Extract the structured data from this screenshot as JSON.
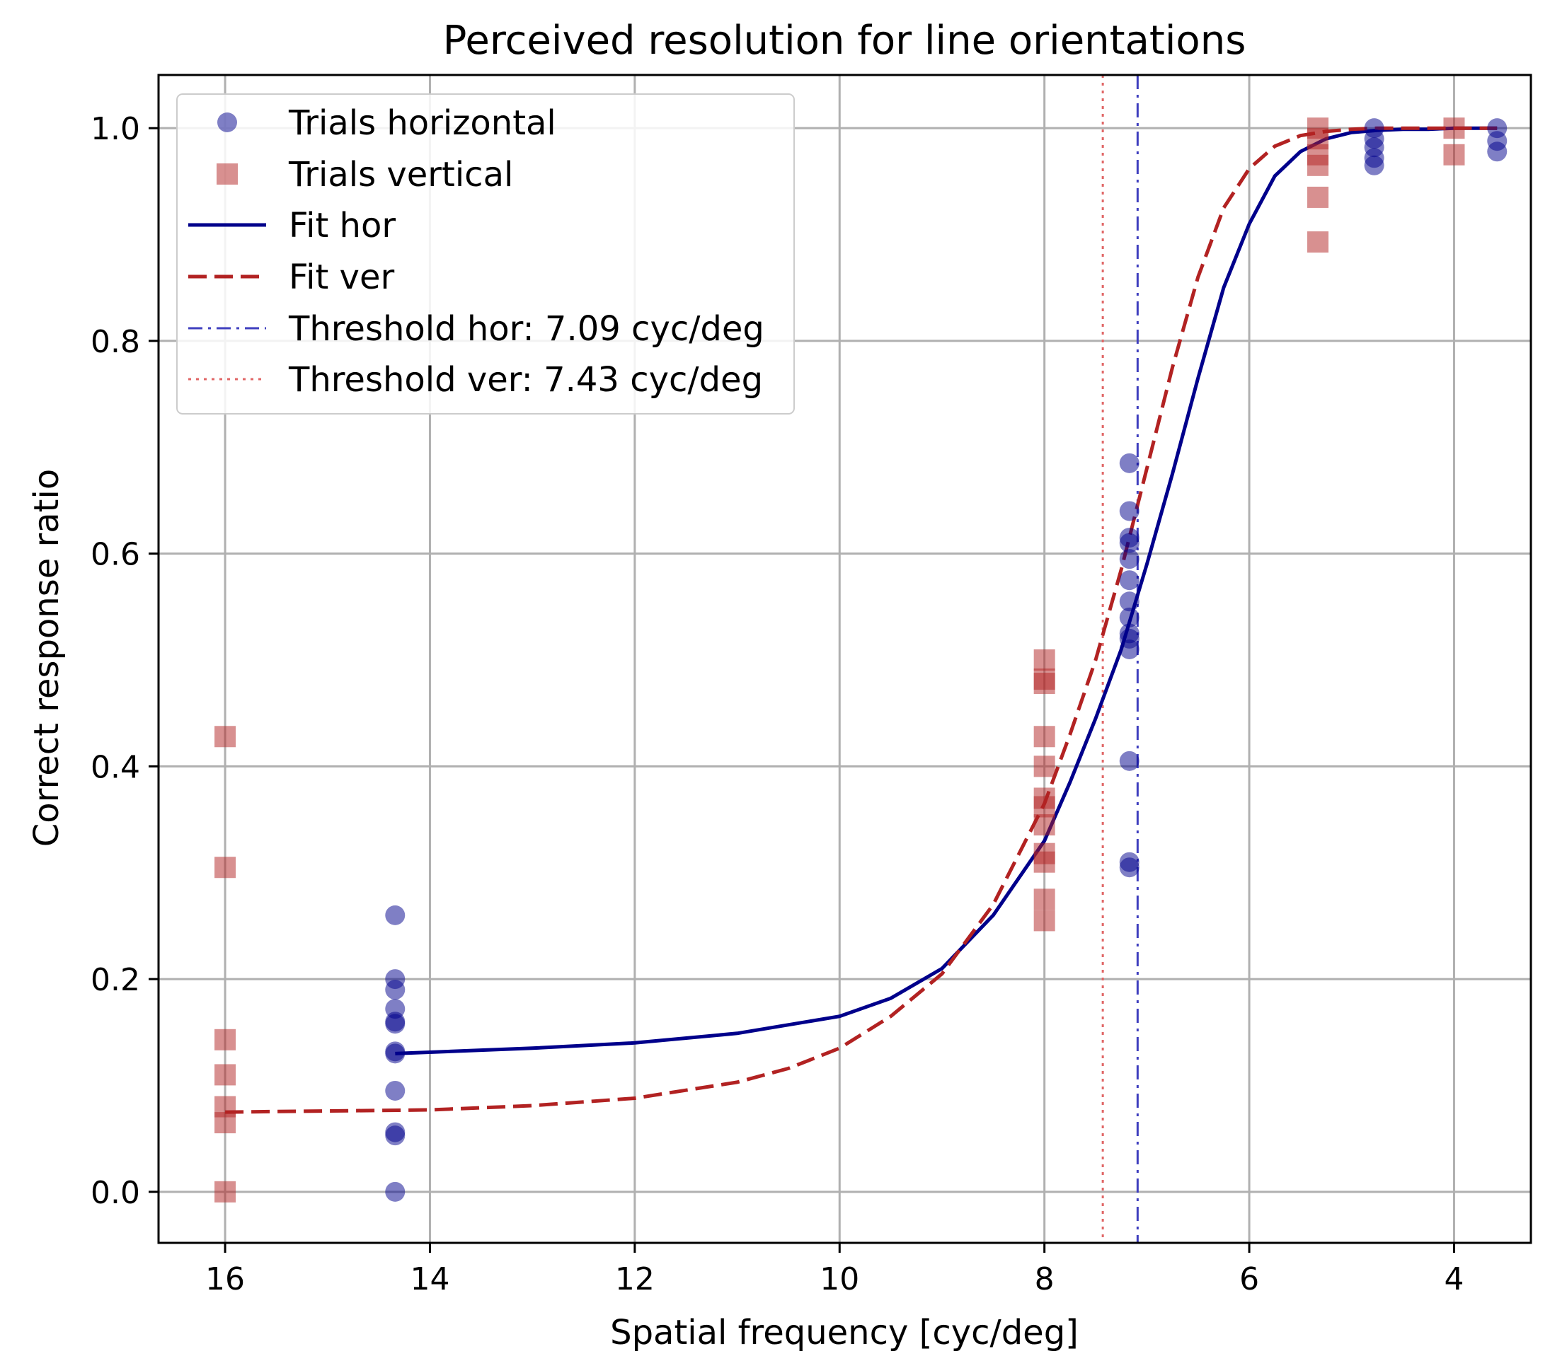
{
  "chart_data": {
    "type": "scatter",
    "title": "Perceived resolution for line orientations",
    "xlabel": "Spatial frequency [cyc/deg]",
    "ylabel": "Correct response ratio",
    "xlim": [
      16.65,
      3.25
    ],
    "ylim": [
      -0.048,
      1.05
    ],
    "x_inverted": true,
    "grid": true,
    "legend_position": "upper-left",
    "x_ticks": [
      16,
      14,
      12,
      10,
      8,
      6,
      4
    ],
    "x_tick_labels": [
      "16",
      "14",
      "12",
      "10",
      "8",
      "6",
      "4"
    ],
    "y_ticks": [
      0.0,
      0.2,
      0.4,
      0.6,
      0.8,
      1.0
    ],
    "y_tick_labels": [
      "0.0",
      "0.2",
      "0.4",
      "0.6",
      "0.8",
      "1.0"
    ],
    "colors": {
      "horizontal": "#00008b",
      "vertical": "#b22222",
      "threshold_hor": "#3f3fbf",
      "threshold_ver": "#e06666",
      "grid": "#b0b0b0"
    },
    "series": [
      {
        "name": "Trials horizontal",
        "kind": "scatter",
        "marker": "circle",
        "color": "#00008b",
        "opacity": 0.5,
        "points": [
          {
            "x": 14.34,
            "y": 0.0
          },
          {
            "x": 14.34,
            "y": 0.053
          },
          {
            "x": 14.34,
            "y": 0.056
          },
          {
            "x": 14.34,
            "y": 0.095
          },
          {
            "x": 14.34,
            "y": 0.13
          },
          {
            "x": 14.34,
            "y": 0.132
          },
          {
            "x": 14.34,
            "y": 0.158
          },
          {
            "x": 14.34,
            "y": 0.16
          },
          {
            "x": 14.34,
            "y": 0.172
          },
          {
            "x": 14.34,
            "y": 0.19
          },
          {
            "x": 14.34,
            "y": 0.2
          },
          {
            "x": 14.34,
            "y": 0.26
          },
          {
            "x": 7.17,
            "y": 0.305
          },
          {
            "x": 7.17,
            "y": 0.31
          },
          {
            "x": 7.17,
            "y": 0.405
          },
          {
            "x": 7.17,
            "y": 0.51
          },
          {
            "x": 7.17,
            "y": 0.52
          },
          {
            "x": 7.17,
            "y": 0.525
          },
          {
            "x": 7.17,
            "y": 0.54
          },
          {
            "x": 7.17,
            "y": 0.555
          },
          {
            "x": 7.17,
            "y": 0.575
          },
          {
            "x": 7.17,
            "y": 0.595
          },
          {
            "x": 7.17,
            "y": 0.61
          },
          {
            "x": 7.17,
            "y": 0.615
          },
          {
            "x": 7.17,
            "y": 0.64
          },
          {
            "x": 7.17,
            "y": 0.685
          },
          {
            "x": 4.78,
            "y": 0.965
          },
          {
            "x": 4.78,
            "y": 0.972
          },
          {
            "x": 4.78,
            "y": 0.982
          },
          {
            "x": 4.78,
            "y": 0.99
          },
          {
            "x": 4.78,
            "y": 1.0
          },
          {
            "x": 3.58,
            "y": 0.978
          },
          {
            "x": 3.58,
            "y": 0.988
          },
          {
            "x": 3.58,
            "y": 1.0
          }
        ]
      },
      {
        "name": "Trials vertical",
        "kind": "scatter",
        "marker": "square",
        "color": "#b22222",
        "opacity": 0.5,
        "points": [
          {
            "x": 16.0,
            "y": 0.0
          },
          {
            "x": 16.0,
            "y": 0.065
          },
          {
            "x": 16.0,
            "y": 0.08
          },
          {
            "x": 16.0,
            "y": 0.11
          },
          {
            "x": 16.0,
            "y": 0.143
          },
          {
            "x": 16.0,
            "y": 0.305
          },
          {
            "x": 16.0,
            "y": 0.428
          },
          {
            "x": 8.0,
            "y": 0.255
          },
          {
            "x": 8.0,
            "y": 0.275
          },
          {
            "x": 8.0,
            "y": 0.31
          },
          {
            "x": 8.0,
            "y": 0.318
          },
          {
            "x": 8.0,
            "y": 0.345
          },
          {
            "x": 8.0,
            "y": 0.362
          },
          {
            "x": 8.0,
            "y": 0.37
          },
          {
            "x": 8.0,
            "y": 0.4
          },
          {
            "x": 8.0,
            "y": 0.428
          },
          {
            "x": 8.0,
            "y": 0.478
          },
          {
            "x": 8.0,
            "y": 0.482
          },
          {
            "x": 8.0,
            "y": 0.5
          },
          {
            "x": 5.33,
            "y": 0.893
          },
          {
            "x": 5.33,
            "y": 0.935
          },
          {
            "x": 5.33,
            "y": 0.965
          },
          {
            "x": 5.33,
            "y": 0.975
          },
          {
            "x": 5.33,
            "y": 0.99
          },
          {
            "x": 5.33,
            "y": 1.0
          },
          {
            "x": 4.0,
            "y": 0.975
          },
          {
            "x": 4.0,
            "y": 1.0
          }
        ]
      },
      {
        "name": "Fit hor",
        "kind": "line",
        "style": "solid",
        "color": "#00008b",
        "x": [
          14.34,
          13.0,
          12.0,
          11.0,
          10.0,
          9.5,
          9.0,
          8.5,
          8.0,
          7.75,
          7.5,
          7.25,
          7.0,
          6.75,
          6.5,
          6.25,
          6.0,
          5.75,
          5.5,
          5.25,
          5.0,
          4.75,
          4.5,
          4.25,
          4.0,
          3.58
        ],
        "y": [
          0.13,
          0.135,
          0.14,
          0.149,
          0.165,
          0.182,
          0.21,
          0.26,
          0.33,
          0.385,
          0.445,
          0.51,
          0.59,
          0.675,
          0.765,
          0.85,
          0.91,
          0.955,
          0.978,
          0.99,
          0.996,
          0.998,
          0.999,
          0.999,
          1.0,
          1.0
        ]
      },
      {
        "name": "Fit ver",
        "kind": "line",
        "style": "dashed",
        "color": "#b22222",
        "x": [
          16.0,
          14.0,
          13.0,
          12.0,
          11.0,
          10.5,
          10.0,
          9.5,
          9.0,
          8.5,
          8.0,
          7.75,
          7.5,
          7.25,
          7.0,
          6.75,
          6.5,
          6.25,
          6.0,
          5.75,
          5.5,
          5.25,
          5.0,
          4.75,
          4.5,
          4.0,
          3.58
        ],
        "y": [
          0.075,
          0.077,
          0.081,
          0.088,
          0.103,
          0.116,
          0.135,
          0.165,
          0.205,
          0.27,
          0.365,
          0.43,
          0.5,
          0.585,
          0.68,
          0.775,
          0.86,
          0.925,
          0.962,
          0.983,
          0.993,
          0.997,
          0.999,
          1.0,
          1.0,
          1.0,
          1.0
        ]
      },
      {
        "name": "Threshold hor: 7.09 cyc/deg",
        "kind": "vline",
        "style": "dashdot",
        "color": "#3f3fbf",
        "x": 7.09
      },
      {
        "name": "Threshold ver: 7.43 cyc/deg",
        "kind": "vline",
        "style": "dotted",
        "color": "#e06666",
        "x": 7.43
      }
    ]
  }
}
